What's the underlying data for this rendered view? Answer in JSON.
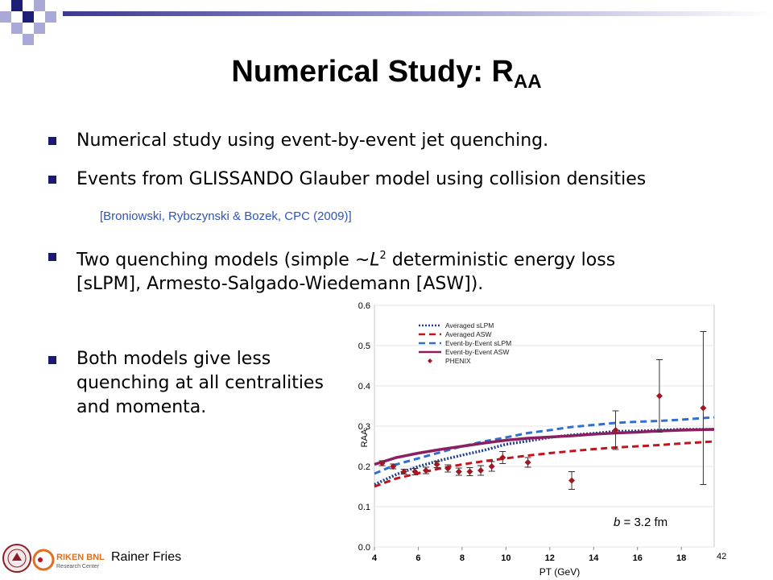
{
  "slide": {
    "title_main": "Numerical Study: R",
    "title_sub": "AA",
    "bullets": [
      {
        "text": "Numerical study using event-by-event jet quenching."
      },
      {
        "text": "Events from GLISSANDO Glauber model using collision densities"
      },
      {
        "pre": "Two quenching models (simple ~",
        "italic": "L",
        "sup": "2",
        "post": " deterministic energy loss",
        "line2": "[sLPM], Armesto-Salgado-Wiedemann [ASW])."
      },
      {
        "line1": "Both models give less",
        "line2": "quenching at all centralities",
        "line3": "and momenta."
      }
    ],
    "citation": "[Broniowski, Rybczynski & Bozek, CPC (2009)]",
    "footer_author": "Rainer Fries",
    "logo_text_1": "RIKEN BNL",
    "logo_text_2": "Research Center",
    "page_number": "42",
    "colors": {
      "bullet": "#1a1a6e",
      "deco_dark": "#1e1e78",
      "deco_light": "#a9a9d8",
      "citation": "#2f55b5"
    }
  },
  "chart_data": {
    "type": "line",
    "xlabel": "PT (GeV)",
    "ylabel": "RAA",
    "xlim": [
      4,
      19.5
    ],
    "ylim": [
      0,
      0.6
    ],
    "x_ticks": [
      4,
      6,
      8,
      10,
      12,
      14,
      16,
      18
    ],
    "y_ticks": [
      0.0,
      0.1,
      0.2,
      0.3,
      0.4,
      0.5,
      0.6
    ],
    "y_tick_labels": [
      "0.0",
      "0.1",
      "0.2",
      "0.3",
      "0.4",
      "0.5",
      "0.6"
    ],
    "annotation": {
      "italic": "b",
      "text": " = 3.2 fm"
    },
    "legend_position": "top-left",
    "series": [
      {
        "name": "Averaged sLPM",
        "color": "#1f3f8f",
        "style": "dotted",
        "width": 3.5,
        "x": [
          4,
          5,
          6,
          7,
          8,
          9,
          10,
          11,
          12,
          13,
          14,
          15,
          16,
          17,
          18,
          19.5
        ],
        "y": [
          0.155,
          0.18,
          0.2,
          0.215,
          0.228,
          0.24,
          0.255,
          0.263,
          0.272,
          0.278,
          0.282,
          0.287,
          0.288,
          0.29,
          0.292,
          0.292
        ]
      },
      {
        "name": "Averaged ASW",
        "color": "#c0141c",
        "style": "dashed",
        "width": 3,
        "x": [
          4,
          5,
          6,
          7,
          8,
          9,
          10,
          11,
          12,
          13,
          14,
          15,
          16,
          17,
          18,
          19.5
        ],
        "y": [
          0.15,
          0.17,
          0.183,
          0.195,
          0.205,
          0.213,
          0.22,
          0.227,
          0.233,
          0.238,
          0.243,
          0.247,
          0.25,
          0.253,
          0.257,
          0.262
        ]
      },
      {
        "name": "Event-by-Event  sLPM",
        "color": "#2f6fd0",
        "style": "dashed",
        "width": 3,
        "x": [
          4,
          5,
          6,
          7,
          8,
          9,
          10,
          11,
          12,
          13,
          14,
          15,
          16,
          17,
          18,
          19.5
        ],
        "y": [
          0.182,
          0.205,
          0.22,
          0.235,
          0.25,
          0.262,
          0.272,
          0.283,
          0.29,
          0.298,
          0.303,
          0.308,
          0.311,
          0.313,
          0.316,
          0.322
        ]
      },
      {
        "name": "Event-by-Event ASW",
        "color": "#8b2060",
        "style": "solid",
        "width": 3.5,
        "x": [
          4,
          5,
          6,
          7,
          8,
          9,
          10,
          11,
          12,
          13,
          14,
          15,
          16,
          17,
          18,
          19.5
        ],
        "y": [
          0.205,
          0.222,
          0.233,
          0.242,
          0.25,
          0.258,
          0.265,
          0.27,
          0.273,
          0.276,
          0.28,
          0.283,
          0.285,
          0.288,
          0.29,
          0.292
        ]
      },
      {
        "name": "PHENIX",
        "color": "#a01822",
        "style": "markers",
        "points": [
          {
            "x": 4.35,
            "y": 0.208,
            "err": 0.006
          },
          {
            "x": 4.85,
            "y": 0.2,
            "err": 0.006
          },
          {
            "x": 5.35,
            "y": 0.187,
            "err": 0.006
          },
          {
            "x": 5.85,
            "y": 0.187,
            "err": 0.008
          },
          {
            "x": 6.35,
            "y": 0.19,
            "err": 0.008
          },
          {
            "x": 6.85,
            "y": 0.205,
            "err": 0.008
          },
          {
            "x": 7.35,
            "y": 0.195,
            "err": 0.009
          },
          {
            "x": 7.85,
            "y": 0.187,
            "err": 0.009
          },
          {
            "x": 8.35,
            "y": 0.187,
            "err": 0.01
          },
          {
            "x": 8.85,
            "y": 0.19,
            "err": 0.012
          },
          {
            "x": 9.35,
            "y": 0.2,
            "err": 0.012
          },
          {
            "x": 9.85,
            "y": 0.222,
            "err": 0.015
          },
          {
            "x": 11.0,
            "y": 0.21,
            "err": 0.012
          },
          {
            "x": 13.0,
            "y": 0.165,
            "err": 0.022
          },
          {
            "x": 15.0,
            "y": 0.29,
            "err": 0.048
          },
          {
            "x": 17.0,
            "y": 0.375,
            "err": 0.09
          },
          {
            "x": 19.0,
            "y": 0.345,
            "err": 0.19
          }
        ]
      }
    ]
  }
}
